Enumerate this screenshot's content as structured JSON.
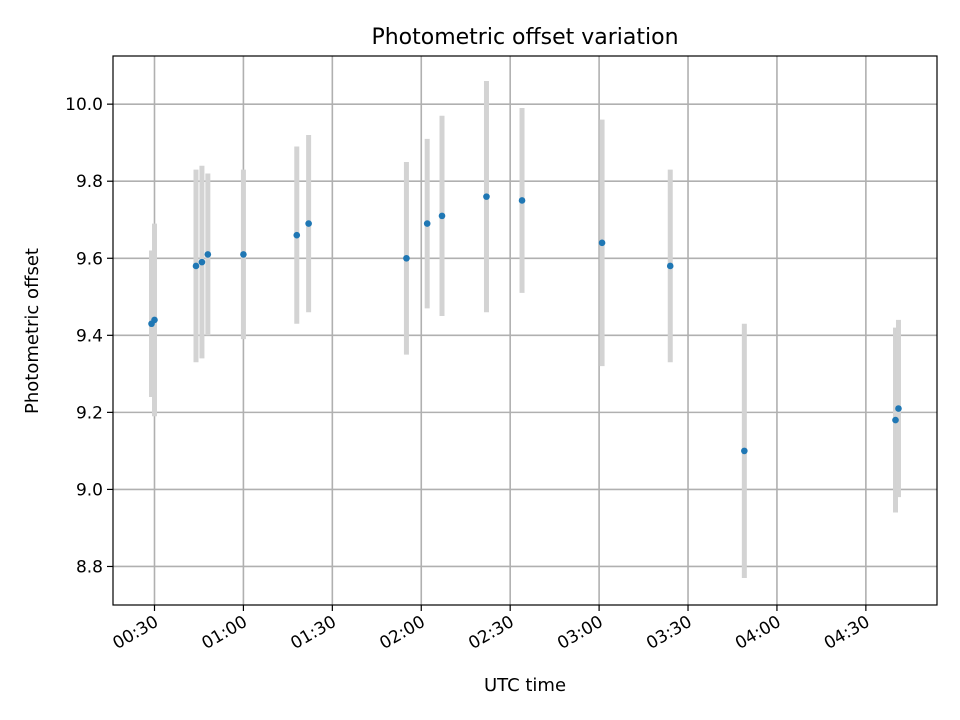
{
  "chart_data": {
    "type": "scatter",
    "title": "Photometric offset variation",
    "xlabel": "UTC time",
    "ylabel": "Photometric offset",
    "grid": true,
    "xlim": [
      "00:16",
      "04:54"
    ],
    "ylim": [
      8.7,
      10.125
    ],
    "x_ticks": [
      "00:30",
      "01:00",
      "01:30",
      "02:00",
      "02:30",
      "03:00",
      "03:30",
      "04:00",
      "04:30"
    ],
    "y_ticks": [
      "8.8",
      "9.0",
      "9.2",
      "9.4",
      "9.6",
      "9.8",
      "10.0"
    ],
    "series": [
      {
        "marker_color": "#1f77b4",
        "errorbar_color": "#d3d3d3",
        "points": [
          {
            "x": "00:29",
            "y": 9.43,
            "yerr": 0.19
          },
          {
            "x": "00:30",
            "y": 9.44,
            "yerr": 0.25
          },
          {
            "x": "00:44",
            "y": 9.58,
            "yerr": 0.25
          },
          {
            "x": "00:46",
            "y": 9.59,
            "yerr": 0.25
          },
          {
            "x": "00:48",
            "y": 9.61,
            "yerr": 0.21
          },
          {
            "x": "01:00",
            "y": 9.61,
            "yerr": 0.22
          },
          {
            "x": "01:18",
            "y": 9.66,
            "yerr": 0.23
          },
          {
            "x": "01:22",
            "y": 9.69,
            "yerr": 0.23
          },
          {
            "x": "01:55",
            "y": 9.6,
            "yerr": 0.25
          },
          {
            "x": "02:02",
            "y": 9.69,
            "yerr": 0.22
          },
          {
            "x": "02:07",
            "y": 9.71,
            "yerr": 0.26
          },
          {
            "x": "02:22",
            "y": 9.76,
            "yerr": 0.3
          },
          {
            "x": "02:34",
            "y": 9.75,
            "yerr": 0.24
          },
          {
            "x": "03:01",
            "y": 9.64,
            "yerr": 0.32
          },
          {
            "x": "03:24",
            "y": 9.58,
            "yerr": 0.25
          },
          {
            "x": "03:49",
            "y": 9.1,
            "yerr": 0.33
          },
          {
            "x": "04:40",
            "y": 9.18,
            "yerr": 0.24
          },
          {
            "x": "04:41",
            "y": 9.21,
            "yerr": 0.23
          }
        ]
      }
    ]
  }
}
